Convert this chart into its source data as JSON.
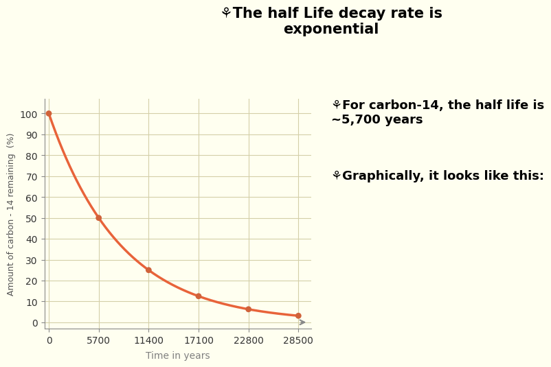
{
  "title_line1": "⚘The half Life decay rate is",
  "title_line2": "exponential",
  "annotation1": "⚘For carbon-14, the half life is\n~5,700 years",
  "annotation2": "⚘Graphically, it looks like this:",
  "xlabel": "Time in years",
  "ylabel": "Amount of carbon - 14 remaining  (%)",
  "half_life": 5700,
  "x_ticks": [
    0,
    5700,
    11400,
    17100,
    22800,
    28500
  ],
  "y_ticks": [
    0,
    10,
    20,
    30,
    40,
    50,
    60,
    70,
    80,
    90,
    100
  ],
  "xlim": [
    -500,
    30000
  ],
  "ylim": [
    -3,
    107
  ],
  "line_color": "#E8633A",
  "line_width": 2.5,
  "dot_color": "#D0623A",
  "dot_size": 40,
  "background_color": "#FFFFF0",
  "grid_color": "#D4CFA8",
  "title_fontsize": 15,
  "annotation_fontsize": 13,
  "axis_label_fontsize": 10,
  "tick_fontsize": 10,
  "tick_color": "#333333",
  "spine_color": "#888888"
}
